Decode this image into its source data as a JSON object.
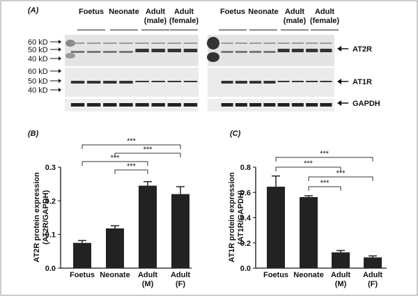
{
  "blot": {
    "panel": "(A)",
    "groups": [
      [
        "Foetus"
      ],
      [
        "Neonate"
      ],
      [
        "Adult",
        "(male)"
      ],
      [
        "Adult",
        "(female)"
      ]
    ],
    "markers_top": [
      "60 kD",
      "50 kD",
      "40 kD"
    ],
    "markers_mid": [
      "60 kD",
      "50 kD",
      "40 kD"
    ],
    "bands": [
      "AT2R",
      "AT1R",
      "GAPDH"
    ]
  },
  "chart_data": [
    {
      "type": "bar",
      "panel": "(B)",
      "ylabel": [
        "AT2R protein expression",
        "(AT2R/GAPDH)"
      ],
      "categories": [
        [
          "Foetus"
        ],
        [
          "Neonate"
        ],
        [
          "Adult",
          "(M)"
        ],
        [
          "Adult",
          "(F)"
        ]
      ],
      "values": [
        0.075,
        0.118,
        0.245,
        0.22
      ],
      "errors": [
        0.007,
        0.008,
        0.012,
        0.022
      ],
      "color": "#222222",
      "ylim": [
        0,
        0.3
      ],
      "yticks": [
        {
          "value": 0,
          "label": "0.0"
        },
        0.1,
        0.2,
        0.3
      ],
      "comparisons": [
        {
          "between": [
            0,
            3
          ],
          "label": "***"
        },
        {
          "between": [
            1,
            3
          ],
          "label": "***"
        },
        {
          "between": [
            0,
            2
          ],
          "label": "***"
        },
        {
          "between": [
            1,
            2
          ],
          "label": "***"
        }
      ]
    },
    {
      "type": "bar",
      "panel": "(C)",
      "ylabel": [
        "AT1R protein expression",
        "(AT1R/GAPDH)"
      ],
      "categories": [
        [
          "Foetus"
        ],
        [
          "Neonate"
        ],
        [
          "Adult",
          "(M)"
        ],
        [
          "Adult",
          "(F)"
        ]
      ],
      "values": [
        0.645,
        0.563,
        0.125,
        0.085
      ],
      "errors": [
        0.085,
        0.01,
        0.015,
        0.012
      ],
      "color": "#222222",
      "ylim": [
        0,
        0.8
      ],
      "yticks": [
        {
          "value": 0,
          "label": "0.0"
        },
        0.2,
        0.4,
        0.6,
        0.8
      ],
      "comparisons": [
        {
          "between": [
            0,
            3
          ],
          "label": "***"
        },
        {
          "between": [
            0,
            2
          ],
          "label": "***"
        },
        {
          "between": [
            1,
            3
          ],
          "label": "***"
        },
        {
          "between": [
            1,
            2
          ],
          "label": "***"
        }
      ]
    }
  ]
}
